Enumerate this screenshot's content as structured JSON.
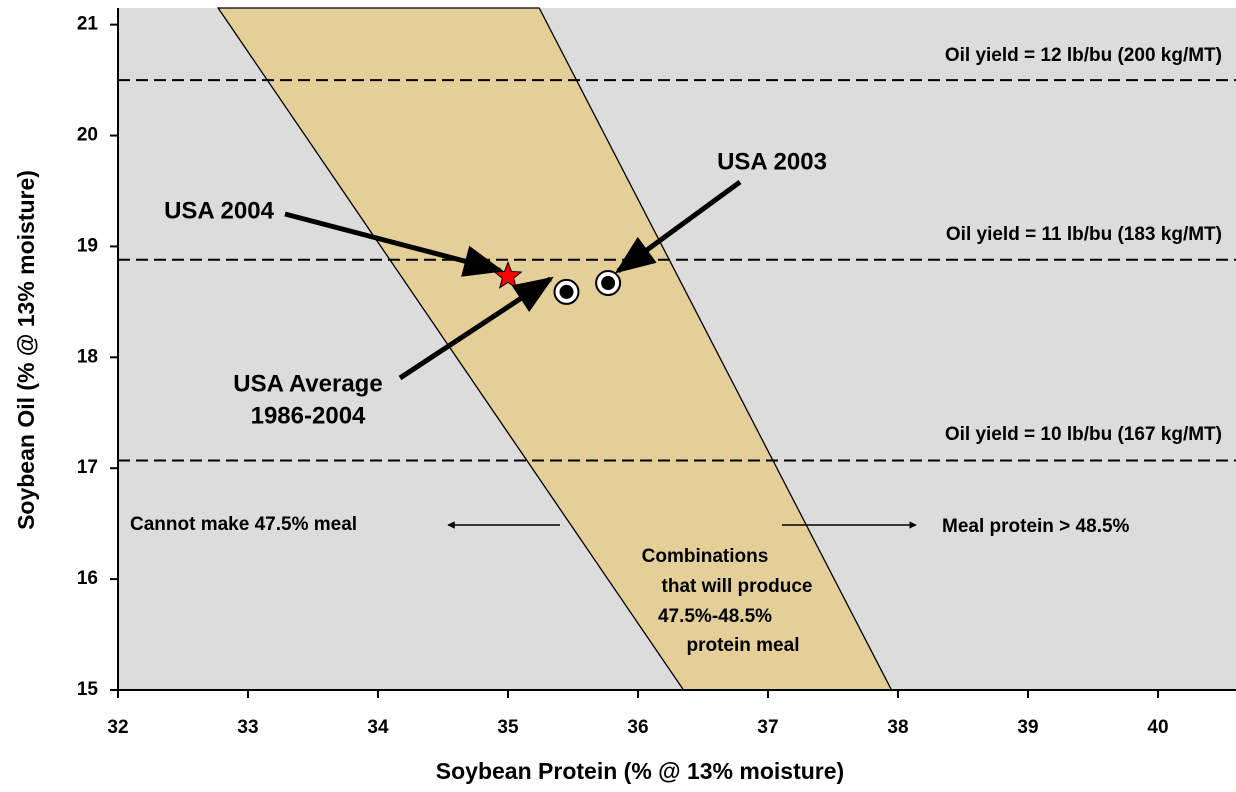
{
  "chart_data": {
    "type": "scatter",
    "xlabel": "Soybean Protein (% @ 13% moisture)",
    "ylabel": "Soybean Oil (% @ 13% moisture)",
    "xlim": [
      32,
      40.6
    ],
    "ylim": [
      15,
      21.15
    ],
    "xticks": [
      32,
      33,
      34,
      35,
      36,
      37,
      38,
      39,
      40
    ],
    "yticks": [
      15,
      16,
      17,
      18,
      19,
      20,
      21
    ],
    "background": "#dcdcdc",
    "band": {
      "color": "#e3cf97",
      "left_x": [
        32.77,
        36.35
      ],
      "right_x": [
        35.24,
        37.95
      ],
      "y": [
        21.15,
        15
      ],
      "label_lines": [
        "Combinations",
        "that will produce",
        "47.5%-48.5%",
        "protein meal"
      ]
    },
    "oil_yield_lines": [
      {
        "value": 20.5,
        "label": "Oil yield = 12 lb/bu (200 kg/MT)"
      },
      {
        "value": 18.88,
        "label": "Oil yield = 11 lb/bu (183 kg/MT)"
      },
      {
        "value": 17.07,
        "label": "Oil yield = 10 lb/bu (167 kg/MT)"
      }
    ],
    "points": [
      {
        "label_lines": [
          "USA 2004"
        ],
        "x": 35.0,
        "y": 18.73,
        "marker": "star",
        "color": "#ff0000"
      },
      {
        "label_lines": [
          "USA Average",
          "1986-2004"
        ],
        "x": 35.45,
        "y": 18.59,
        "marker": "ring",
        "color": "#000000"
      },
      {
        "label_lines": [
          "USA 2003"
        ],
        "x": 35.77,
        "y": 18.67,
        "marker": "ring",
        "color": "#000000"
      }
    ],
    "regions": [
      "Cannot make 47.5% meal",
      "Meal protein > 48.5%"
    ]
  }
}
